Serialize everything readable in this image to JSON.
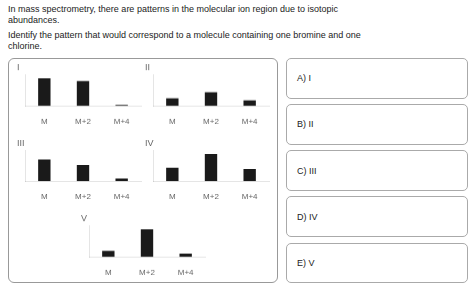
{
  "title": "In mass spectrometry, there are patterns in the molecular ion region due to isotopic\nabundances.",
  "subtitle": "Identify the pattern that would correspond to a molecule containing one bromine and one\nchlorine.",
  "annotations": [
    "A) I",
    "B) II",
    "C) III",
    "D) IV",
    "E) V"
  ],
  "chart_data": [
    {
      "type": "bar",
      "title": "I",
      "categories": [
        "M",
        "M+2",
        "M+4"
      ],
      "values": [
        1.0,
        0.9,
        0.04
      ],
      "color": "#1a1a1a",
      "ylim": [
        0,
        1.12
      ],
      "tick_labels": "x",
      "grid": false
    },
    {
      "type": "bar",
      "title": "II",
      "categories": [
        "M",
        "M+2",
        "M+4"
      ],
      "values": [
        0.28,
        0.5,
        0.2
      ],
      "color": "#1a1a1a",
      "ylim": [
        0,
        1.12
      ],
      "tick_labels": "x",
      "grid": false
    },
    {
      "type": "bar",
      "title": "III",
      "categories": [
        "M",
        "M+2",
        "M+4"
      ],
      "values": [
        0.8,
        0.6,
        0.1
      ],
      "color": "#1a1a1a",
      "ylim": [
        0,
        1.12
      ],
      "tick_labels": "x",
      "grid": false
    },
    {
      "type": "bar",
      "title": "IV",
      "categories": [
        "M",
        "M+2",
        "M+4"
      ],
      "values": [
        0.5,
        1.0,
        0.45
      ],
      "color": "#1a1a1a",
      "ylim": [
        0,
        1.12
      ],
      "tick_labels": "x",
      "grid": false
    },
    {
      "type": "bar",
      "title": "V",
      "categories": [
        "M",
        "M+2",
        "M+4"
      ],
      "values": [
        0.22,
        1.0,
        0.12
      ],
      "color": "#1a1a1a",
      "ylim": [
        0,
        1.12
      ],
      "tick_labels": "x",
      "grid": false
    }
  ]
}
